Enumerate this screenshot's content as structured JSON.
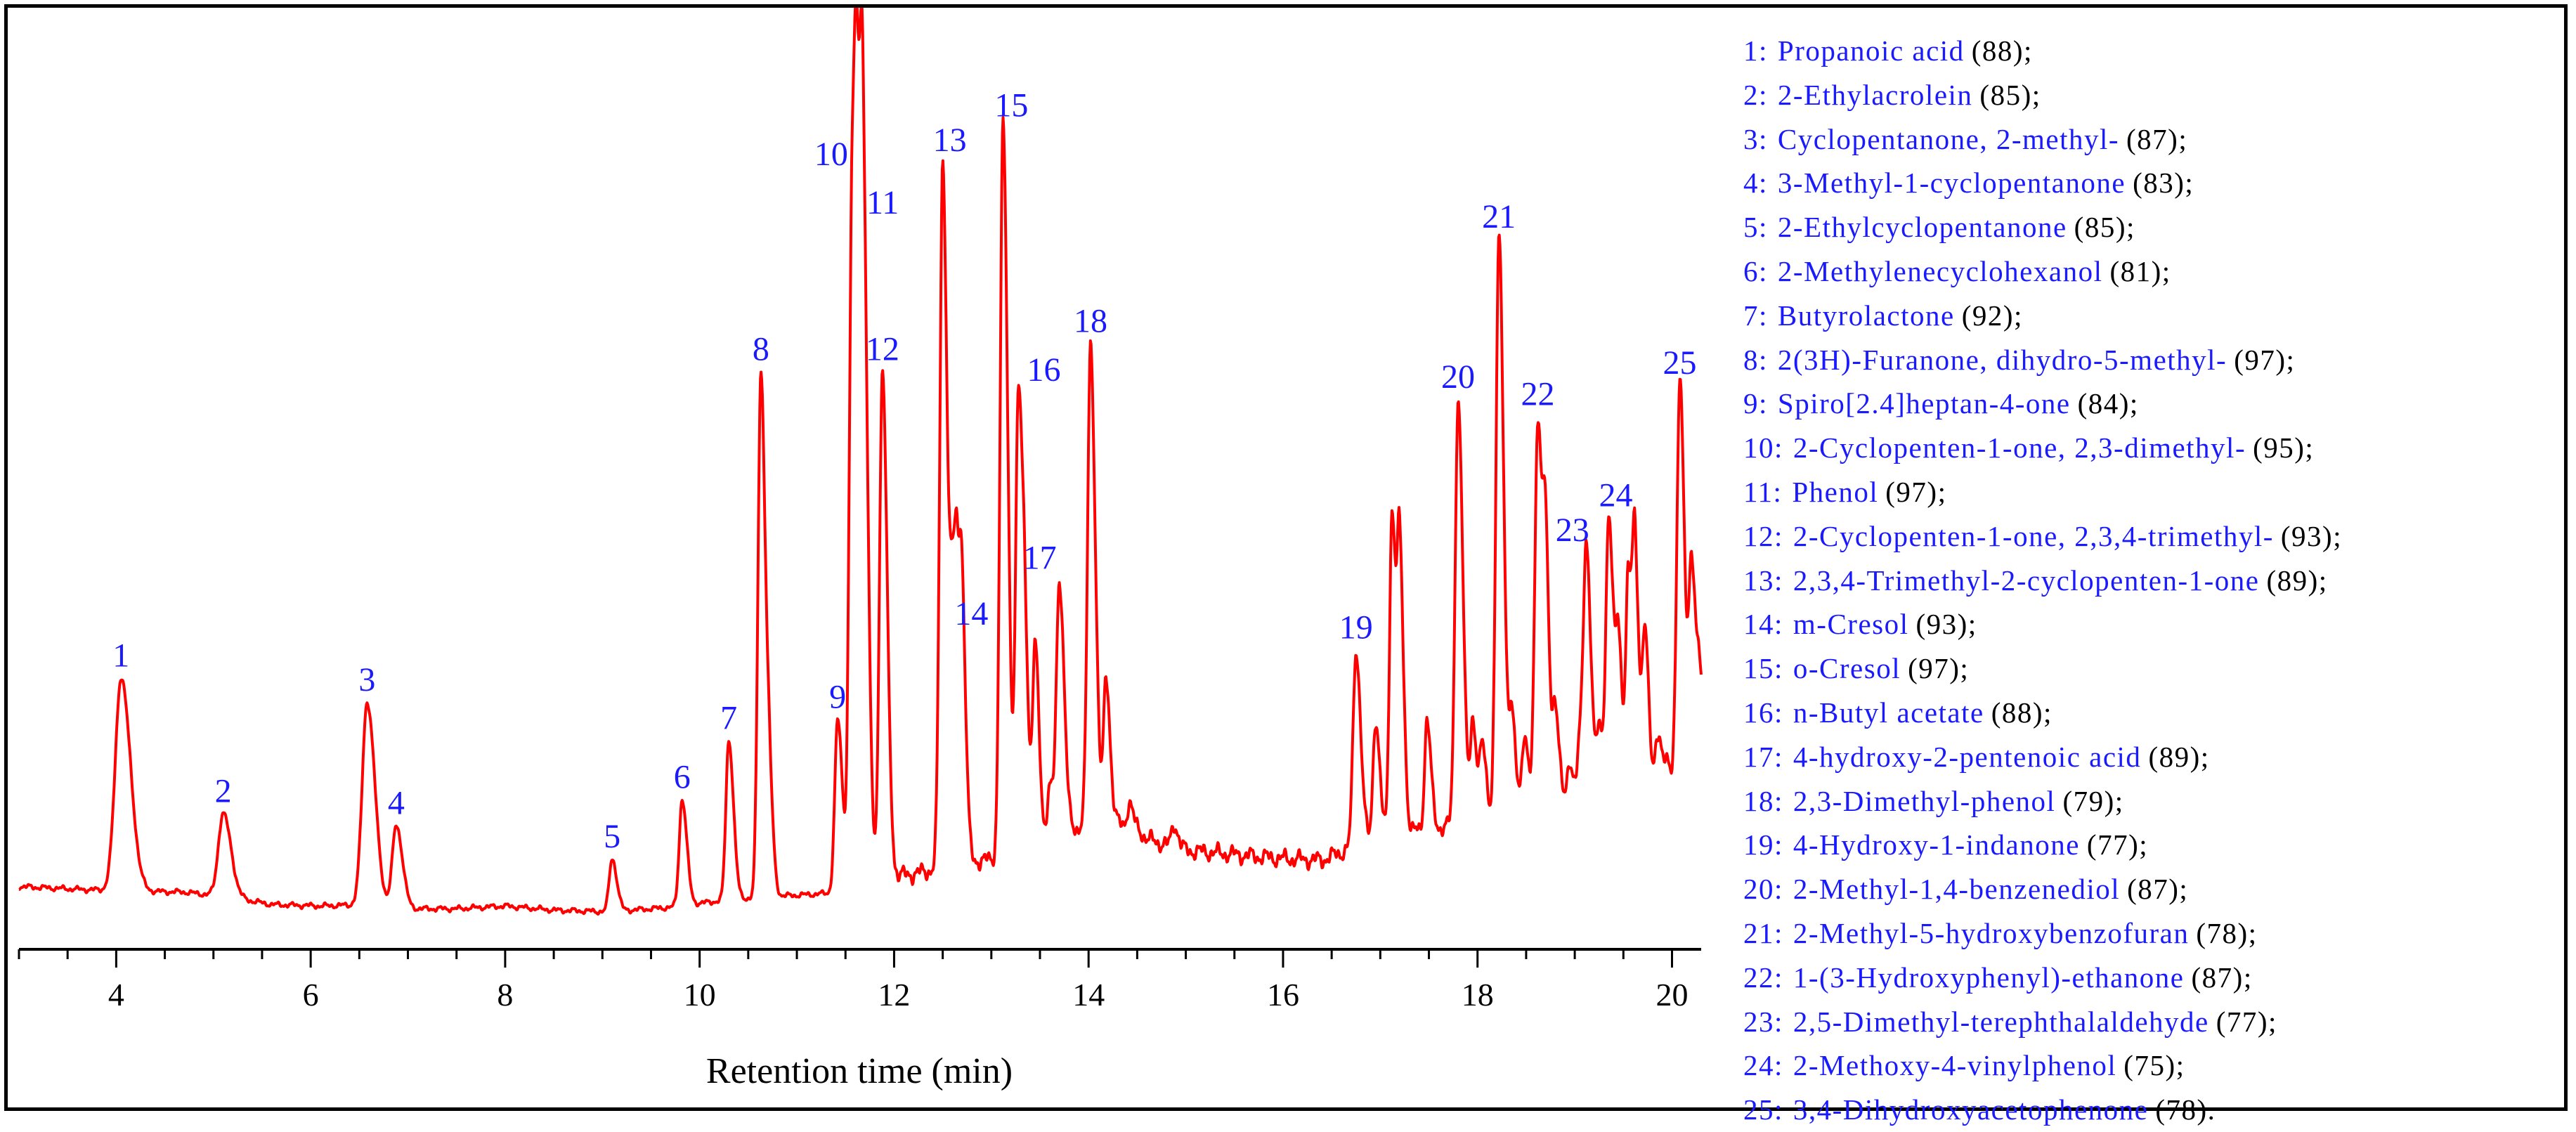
{
  "chart_data": {
    "type": "line",
    "title": "",
    "xlabel": "Retention time (min)",
    "ylabel": "",
    "xlim": [
      3.0,
      20.3
    ],
    "ylim": [
      0,
      110
    ],
    "xticks": [
      4,
      6,
      8,
      10,
      12,
      14,
      16,
      18,
      20
    ],
    "color": "#ff0000",
    "label_color": "#1a1aff",
    "baseline": [
      [
        3.0,
        6.0
      ],
      [
        3.6,
        5.6
      ],
      [
        4.3,
        5.3
      ],
      [
        4.7,
        5.2
      ],
      [
        5.2,
        4.4
      ],
      [
        5.6,
        3.4
      ],
      [
        6.1,
        3.2
      ],
      [
        6.6,
        3.4
      ],
      [
        7.0,
        2.8
      ],
      [
        7.5,
        2.8
      ],
      [
        8.0,
        3.2
      ],
      [
        8.5,
        2.6
      ],
      [
        9.0,
        2.4
      ],
      [
        9.4,
        2.7
      ],
      [
        9.7,
        3.0
      ],
      [
        10.0,
        3.6
      ],
      [
        10.4,
        4.2
      ],
      [
        10.8,
        4.6
      ],
      [
        11.2,
        4.9
      ],
      [
        11.45,
        5.2
      ],
      [
        11.8,
        7.2
      ],
      [
        12.2,
        7.8
      ],
      [
        12.8,
        9.6
      ],
      [
        13.1,
        10.0
      ],
      [
        13.5,
        13.0
      ],
      [
        13.8,
        14.0
      ],
      [
        14.2,
        16.0
      ],
      [
        14.6,
        12.8
      ],
      [
        15.0,
        11.2
      ],
      [
        15.5,
        10.6
      ],
      [
        16.0,
        10.0
      ],
      [
        16.4,
        9.8
      ],
      [
        16.8,
        12.0
      ],
      [
        17.0,
        14.0
      ],
      [
        17.5,
        14.0
      ],
      [
        18.0,
        16.0
      ],
      [
        18.5,
        17.2
      ],
      [
        19.0,
        17.6
      ],
      [
        19.5,
        18.8
      ],
      [
        20.0,
        21.0
      ],
      [
        20.3,
        24.0
      ]
    ],
    "peaks": [
      {
        "n": "1",
        "rt": 4.05,
        "h": 36.0,
        "w": 0.06
      },
      {
        "n": "2",
        "rt": 5.1,
        "h": 16.5,
        "w": 0.05
      },
      {
        "n": "3",
        "rt": 6.58,
        "h": 32.5,
        "w": 0.05
      },
      {
        "n": "4",
        "rt": 6.88,
        "h": 14.8,
        "w": 0.04
      },
      {
        "n": "5",
        "rt": 9.1,
        "h": 10.0,
        "w": 0.03
      },
      {
        "n": "6",
        "rt": 9.82,
        "h": 18.5,
        "w": 0.03
      },
      {
        "n": "7",
        "rt": 10.3,
        "h": 27.0,
        "w": 0.03
      },
      {
        "n": "8",
        "rt": 10.63,
        "h": 80.0,
        "w": 0.03
      },
      {
        "n": "9",
        "rt": 11.42,
        "h": 30.0,
        "w": 0.03
      },
      {
        "n": "10",
        "rt": 11.57,
        "h": 108.0,
        "w": 0.03
      },
      {
        "n": "11",
        "rt": 11.68,
        "h": 101.0,
        "w": 0.03
      },
      {
        "n": "12",
        "rt": 11.88,
        "h": 80.0,
        "w": 0.03
      },
      {
        "n": "13",
        "rt": 12.5,
        "h": 110.0,
        "w": 0.03
      },
      {
        "n": "14",
        "rt": 12.65,
        "h": 42.0,
        "w": 0.03
      },
      {
        "n": "15",
        "rt": 13.12,
        "h": 115.0,
        "w": 0.03
      },
      {
        "n": "16",
        "rt": 13.28,
        "h": 77.0,
        "w": 0.03
      },
      {
        "n": "17",
        "rt": 13.7,
        "h": 50.0,
        "w": 0.03
      },
      {
        "n": "18",
        "rt": 14.02,
        "h": 84.0,
        "w": 0.03
      },
      {
        "n": "19",
        "rt": 16.75,
        "h": 40.0,
        "w": 0.03
      },
      {
        "n": "20",
        "rt": 17.8,
        "h": 76.0,
        "w": 0.03
      },
      {
        "n": "21",
        "rt": 18.22,
        "h": 99.0,
        "w": 0.03
      },
      {
        "n": "22",
        "rt": 18.62,
        "h": 73.5,
        "w": 0.03
      },
      {
        "n": "23",
        "rt": 19.12,
        "h": 54.0,
        "w": 0.03
      },
      {
        "n": "24",
        "rt": 19.35,
        "h": 59.0,
        "w": 0.03
      },
      {
        "n": "25",
        "rt": 20.08,
        "h": 78.0,
        "w": 0.03
      }
    ],
    "minor_peaks": [
      [
        3.75,
        3.5
      ],
      [
        7.98,
        2.6
      ],
      [
        8.1,
        3.0
      ],
      [
        9.6,
        2.0
      ],
      [
        10.72,
        16.0
      ],
      [
        11.62,
        60.0
      ],
      [
        12.35,
        5.0
      ],
      [
        12.6,
        36.0
      ],
      [
        12.7,
        34.0
      ],
      [
        12.85,
        6.0
      ],
      [
        13.35,
        28.0
      ],
      [
        13.45,
        40.0
      ],
      [
        13.6,
        20.0
      ],
      [
        14.18,
        36.0
      ],
      [
        14.3,
        12.0
      ],
      [
        14.42,
        18.0
      ],
      [
        14.52,
        14.0
      ],
      [
        14.7,
        9.0
      ],
      [
        14.88,
        15.0
      ],
      [
        15.2,
        7.0
      ],
      [
        15.6,
        9.0
      ],
      [
        15.75,
        7.0
      ],
      [
        16.1,
        8.0
      ],
      [
        16.25,
        6.0
      ],
      [
        16.6,
        5.0
      ],
      [
        16.95,
        30.0
      ],
      [
        17.12,
        60.0
      ],
      [
        17.2,
        52.0
      ],
      [
        17.48,
        30.0
      ],
      [
        17.95,
        30.0
      ],
      [
        18.05,
        26.0
      ],
      [
        18.35,
        30.0
      ],
      [
        18.48,
        28.0
      ],
      [
        18.7,
        48.0
      ],
      [
        18.8,
        32.0
      ],
      [
        18.95,
        24.0
      ],
      [
        19.05,
        26.0
      ],
      [
        19.25,
        28.0
      ],
      [
        19.45,
        40.0
      ],
      [
        19.55,
        50.0
      ],
      [
        19.62,
        52.0
      ],
      [
        19.72,
        42.0
      ],
      [
        19.85,
        28.0
      ],
      [
        19.95,
        24.0
      ],
      [
        20.2,
        52.0
      ],
      [
        20.28,
        36.0
      ]
    ],
    "legend": [
      {
        "num": "1:",
        "name": "Propanoic acid",
        "score": "(88);"
      },
      {
        "num": "2:",
        "name": "2-Ethylacrolein",
        "score": "(85);"
      },
      {
        "num": "3:",
        "name": "Cyclopentanone, 2-methyl-",
        "score": "(87);"
      },
      {
        "num": "4:",
        "name": "3-Methyl-1-cyclopentanone",
        "score": "(83);"
      },
      {
        "num": "5:",
        "name": "2-Ethylcyclopentanone",
        "score": "(85);"
      },
      {
        "num": "6:",
        "name": "2-Methylenecyclohexanol",
        "score": "(81);"
      },
      {
        "num": "7:",
        "name": "Butyrolactone",
        "score": "(92);"
      },
      {
        "num": "8:",
        "name": "2(3H)-Furanone, dihydro-5-methyl-",
        "score": "(97);"
      },
      {
        "num": "9:",
        "name": "Spiro[2.4]heptan-4-one",
        "score": "(84);"
      },
      {
        "num": "10:",
        "name": "2-Cyclopenten-1-one, 2,3-dimethyl-",
        "score": "(95);"
      },
      {
        "num": "11:",
        "name": "Phenol",
        "score": "(97);"
      },
      {
        "num": "12:",
        "name": "2-Cyclopenten-1-one, 2,3,4-trimethyl-",
        "score": "(93);"
      },
      {
        "num": "13:",
        "name": "2,3,4-Trimethyl-2-cyclopenten-1-one",
        "score": "(89);"
      },
      {
        "num": "14:",
        "name": "m-Cresol",
        "score": "(93);"
      },
      {
        "num": "15:",
        "name": "o-Cresol",
        "score": "(97);"
      },
      {
        "num": "16:",
        "name": "n-Butyl acetate",
        "score": "(88);"
      },
      {
        "num": "17:",
        "name": "4-hydroxy-2-pentenoic acid",
        "score": "(89);"
      },
      {
        "num": "18:",
        "name": "2,3-Dimethyl-phenol",
        "score": "(79);"
      },
      {
        "num": "19:",
        "name": "4-Hydroxy-1-indanone",
        "score": "(77);"
      },
      {
        "num": "20:",
        "name": "2-Methyl-1,4-benzenediol",
        "score": "(87);"
      },
      {
        "num": "21:",
        "name": "2-Methyl-5-hydroxybenzofuran",
        "score": "(78);"
      },
      {
        "num": "22:",
        "name": "1-(3-Hydroxyphenyl)-ethanone",
        "score": "(87);"
      },
      {
        "num": "23:",
        "name": "2,5-Dimethyl-terephthalaldehyde",
        "score": "(77);"
      },
      {
        "num": "24:",
        "name": "2-Methoxy-4-vinylphenol",
        "score": "(75);"
      },
      {
        "num": "25:",
        "name": "3,4-Dihydroxyacetophenone",
        "score": "(78)."
      }
    ]
  }
}
